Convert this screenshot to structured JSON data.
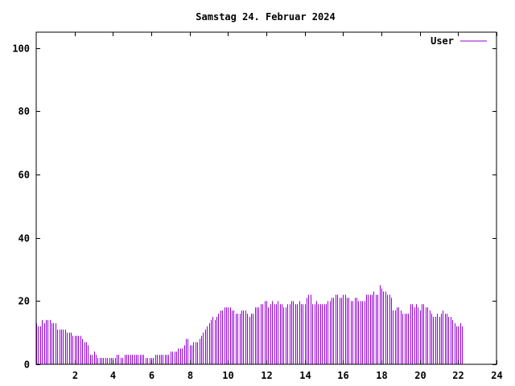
{
  "chart_data": {
    "type": "bar",
    "title": "Samstag 24. Februar 2024",
    "xlabel": "",
    "ylabel": "",
    "xlim": [
      0,
      24
    ],
    "ylim": [
      0,
      105
    ],
    "x_ticks": [
      2,
      4,
      6,
      8,
      10,
      12,
      14,
      16,
      18,
      20,
      22,
      24
    ],
    "y_ticks": [
      0,
      20,
      40,
      60,
      80,
      100
    ],
    "grid": false,
    "legend_position": "top-right",
    "colors": {
      "series": "#9400d3",
      "axis": "#000000",
      "background": "#ffffff"
    },
    "series": [
      {
        "name": "User",
        "x_step": 0.1,
        "x_start": 0,
        "values": [
          13,
          12,
          12,
          14,
          13,
          14,
          14,
          14,
          13,
          13,
          13,
          11,
          11,
          11,
          11,
          11,
          10,
          10,
          10,
          9,
          9,
          9,
          9,
          9,
          8,
          7,
          7,
          6,
          3,
          3,
          4,
          3,
          2,
          2,
          2,
          2,
          2,
          2,
          2,
          2,
          2,
          2,
          3,
          3,
          2,
          2,
          3,
          3,
          3,
          3,
          3,
          3,
          3,
          3,
          3,
          3,
          3,
          2,
          2,
          2,
          2,
          2,
          3,
          3,
          3,
          3,
          3,
          3,
          3,
          3,
          4,
          4,
          4,
          4,
          5,
          5,
          5,
          6,
          8,
          8,
          6,
          6,
          7,
          7,
          7,
          8,
          9,
          10,
          11,
          12,
          13,
          14,
          15,
          14,
          15,
          16,
          17,
          17,
          18,
          18,
          18,
          18,
          17,
          17,
          16,
          16,
          16,
          17,
          17,
          17,
          16,
          15,
          16,
          16,
          18,
          18,
          18,
          19,
          19,
          20,
          20,
          18,
          19,
          20,
          19,
          19,
          20,
          19,
          19,
          18,
          18,
          19,
          19,
          20,
          20,
          19,
          19,
          20,
          19,
          19,
          19,
          21,
          22,
          22,
          19,
          19,
          20,
          19,
          19,
          19,
          19,
          19,
          20,
          20,
          21,
          21,
          22,
          22,
          21,
          21,
          22,
          22,
          21,
          21,
          20,
          20,
          21,
          21,
          20,
          20,
          20,
          20,
          22,
          22,
          22,
          22,
          23,
          22,
          22,
          25,
          24,
          23,
          23,
          22,
          22,
          21,
          17,
          17,
          18,
          18,
          17,
          16,
          16,
          16,
          16,
          19,
          19,
          18,
          19,
          18,
          17,
          19,
          19,
          18,
          18,
          17,
          16,
          15,
          15,
          16,
          15,
          16,
          17,
          16,
          16,
          15,
          15,
          14,
          13,
          12,
          12,
          13,
          12
        ]
      }
    ]
  }
}
